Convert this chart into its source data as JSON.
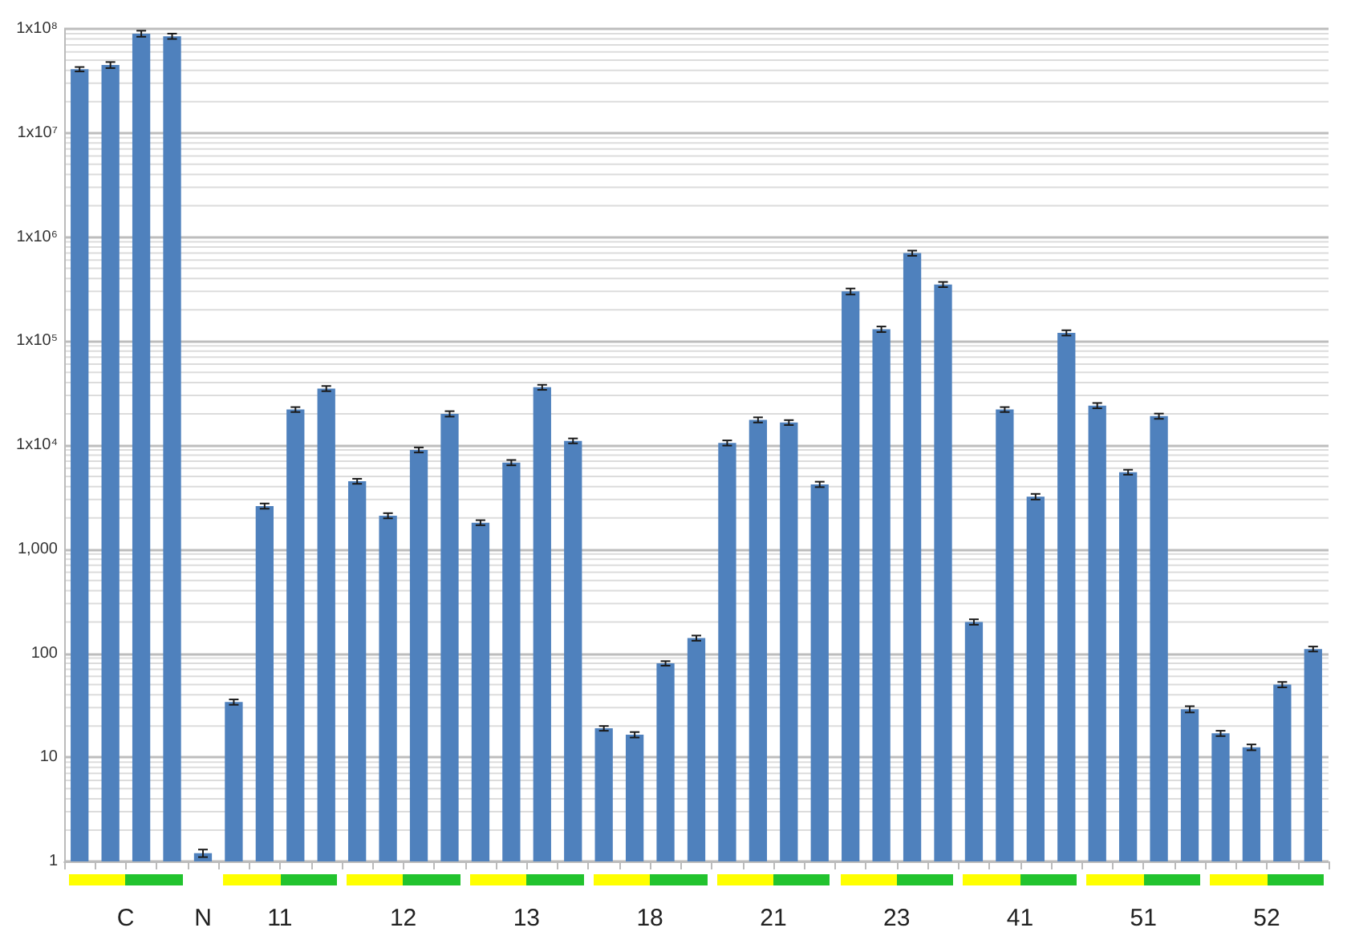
{
  "chart_data": {
    "type": "bar",
    "categories": [
      null,
      "C",
      null,
      null,
      "N",
      null,
      "11",
      null,
      null,
      null,
      "12",
      null,
      null,
      null,
      "13",
      null,
      null,
      null,
      "18",
      null,
      null,
      null,
      "21",
      null,
      null,
      null,
      "23",
      null,
      null,
      null,
      "41",
      null,
      null,
      null,
      "51",
      null,
      null,
      null,
      "52",
      null,
      null
    ],
    "values": [
      41000000,
      45000000,
      90000000,
      85000000,
      1.2,
      34,
      2600,
      22000,
      35000,
      4500,
      2100,
      9000,
      20000,
      1800,
      6800,
      36000,
      11000,
      19,
      16.5,
      80,
      140,
      10500,
      17500,
      16500,
      4200,
      300000,
      130000,
      700000,
      350000,
      200,
      22000,
      3200,
      120000,
      24000,
      5500,
      19000,
      29,
      17,
      12.5,
      50,
      110
    ],
    "errors": [
      2000000,
      3000000,
      6000000,
      5000000,
      0.1,
      2,
      150,
      1200,
      2000,
      250,
      120,
      500,
      1200,
      100,
      400,
      2000,
      600,
      1,
      1,
      4,
      8,
      600,
      1000,
      900,
      250,
      20000,
      8000,
      40000,
      20000,
      12,
      1200,
      200,
      7000,
      1400,
      300,
      1100,
      2,
      1,
      0.8,
      3,
      6
    ],
    "color": "#4f81bd",
    "log": true,
    "ylim": [
      1,
      100000000
    ],
    "yticks": [
      1,
      10,
      100,
      {
        "value": 1000,
        "label": "1,000"
      },
      {
        "value": 10000,
        "label": "1x10⁴"
      },
      {
        "value": 100000,
        "label": "1x10⁵"
      },
      {
        "value": 1000000,
        "label": "1x10⁶"
      },
      {
        "value": 10000000,
        "label": "1x10⁷"
      },
      {
        "value": 100000000,
        "label": "1x10⁸"
      }
    ],
    "grid": "y"
  }
}
